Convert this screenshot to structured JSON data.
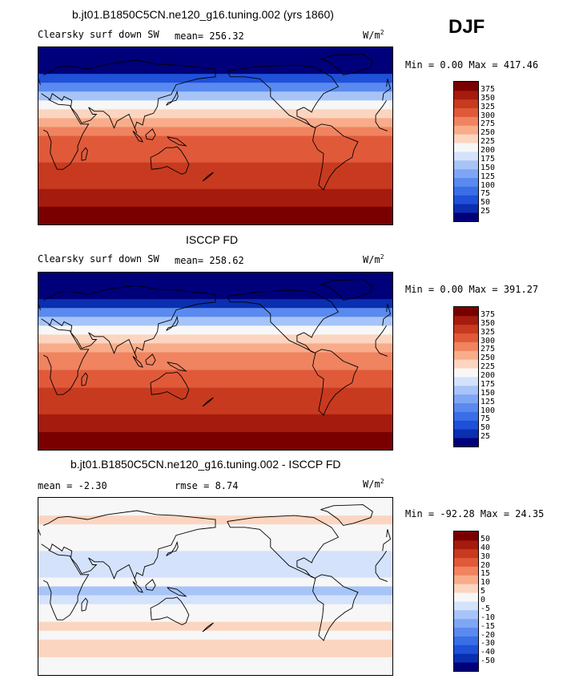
{
  "season": "DJF",
  "panels": [
    {
      "title": "b.jt01.B1850C5CN.ne120_g16.tuning.002 (yrs 1860)",
      "variable": "Clearsky surf down SW",
      "stat_text": "mean= 256.32",
      "units": "W/m",
      "units_exp": "2",
      "minmax": "Min =   0.00 Max = 417.46"
    },
    {
      "title": "ISCCP FD",
      "variable": "Clearsky surf down SW",
      "stat_text": "mean= 258.62",
      "units": "W/m",
      "units_exp": "2",
      "minmax": "Min =   0.00 Max = 391.27"
    },
    {
      "title": "b.jt01.B1850C5CN.ne120_g16.tuning.002 - ISCCP FD",
      "stat_text": "mean =  -2.30",
      "rmse_text": "rmse =   8.74",
      "units": "W/m",
      "units_exp": "2",
      "minmax": "Min = -92.28 Max =  24.35"
    }
  ],
  "chart_data": [
    {
      "type": "heatmap",
      "title": "b.jt01.B1850C5CN.ne120_g16.tuning.002 (yrs 1860)",
      "subtitle": "Clearsky surf down SW",
      "units": "W/m2",
      "mean": 256.32,
      "min": 0.0,
      "max": 417.46,
      "colorbar_levels": [
        25,
        50,
        75,
        100,
        125,
        150,
        175,
        200,
        225,
        250,
        275,
        300,
        325,
        350,
        375
      ],
      "colorbar_colors": [
        "#00007a",
        "#0a2fb0",
        "#1f50d8",
        "#3a6ee6",
        "#5a8aef",
        "#7fa6f4",
        "#a7c4f8",
        "#d4e2fb",
        "#f7f7f7",
        "#fcd5c0",
        "#f8ac8a",
        "#f08360",
        "#e05a3a",
        "#c83a1f",
        "#a51b0e",
        "#7a0000"
      ],
      "lat_band_values": [
        0,
        0,
        15,
        50,
        110,
        170,
        215,
        245,
        265,
        285,
        300,
        310,
        320,
        330,
        340,
        345,
        350,
        365,
        390,
        410
      ]
    },
    {
      "type": "heatmap",
      "title": "ISCCP FD",
      "subtitle": "Clearsky surf down SW",
      "units": "W/m2",
      "mean": 258.62,
      "min": 0.0,
      "max": 391.27,
      "colorbar_levels": [
        25,
        50,
        75,
        100,
        125,
        150,
        175,
        200,
        225,
        250,
        275,
        300,
        325,
        350,
        375
      ],
      "colorbar_colors": [
        "#00007a",
        "#0a2fb0",
        "#1f50d8",
        "#3a6ee6",
        "#5a8aef",
        "#7fa6f4",
        "#a7c4f8",
        "#d4e2fb",
        "#f7f7f7",
        "#fcd5c0",
        "#f8ac8a",
        "#f08360",
        "#e05a3a",
        "#c83a1f",
        "#a51b0e",
        "#7a0000"
      ],
      "lat_band_values": [
        0,
        0,
        10,
        40,
        100,
        160,
        210,
        240,
        262,
        282,
        298,
        310,
        320,
        330,
        338,
        345,
        352,
        365,
        385,
        391
      ]
    },
    {
      "type": "heatmap",
      "title": "b.jt01.B1850C5CN.ne120_g16.tuning.002 - ISCCP FD",
      "units": "W/m2",
      "mean": -2.3,
      "rmse": 8.74,
      "min": -92.28,
      "max": 24.35,
      "colorbar_levels": [
        -50,
        -40,
        -30,
        -20,
        -15,
        -10,
        -5,
        0,
        5,
        10,
        15,
        20,
        30,
        40,
        50
      ],
      "colorbar_colors": [
        "#00007a",
        "#0a2fb0",
        "#1f50d8",
        "#3a6ee6",
        "#5a8aef",
        "#7fa6f4",
        "#a7c4f8",
        "#d4e2fb",
        "#f7f7f7",
        "#fcd5c0",
        "#f8ac8a",
        "#f08360",
        "#e05a3a",
        "#c83a1f",
        "#a51b0e",
        "#7a0000"
      ],
      "lat_band_values": [
        0,
        3,
        5,
        3,
        2,
        0,
        -2,
        -5,
        -3,
        0,
        -8,
        -5,
        0,
        3,
        5,
        3,
        5,
        8,
        0,
        2
      ]
    }
  ]
}
